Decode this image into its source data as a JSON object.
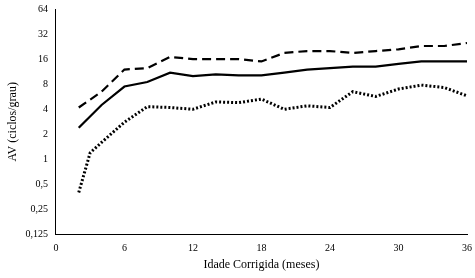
{
  "chart_data": {
    "type": "line",
    "x_label": "Idade Corrigida (meses)",
    "y_label": "AV (ciclos/grau)",
    "log": "y",
    "grid": false,
    "xlim": [
      0,
      36
    ],
    "xticks": [
      0,
      6,
      12,
      18,
      24,
      30,
      36
    ],
    "ylim": [
      0.125,
      64
    ],
    "yticks": [
      {
        "value": 0.125,
        "label": "0,125"
      },
      {
        "value": 0.25,
        "label": "0,25"
      },
      {
        "value": 0.5,
        "label": "0,5"
      },
      1,
      2,
      4,
      8,
      16,
      32,
      64
    ],
    "series": [
      {
        "color": "#000000",
        "line_style": "dashed",
        "x": [
          2,
          4,
          6,
          8,
          10,
          12,
          14,
          16,
          18,
          20,
          22,
          24,
          26,
          28,
          30,
          32,
          34,
          36
        ],
        "values": [
          4.2,
          6.5,
          12,
          12.5,
          17,
          16,
          16,
          16,
          15,
          19,
          20,
          20,
          19,
          20,
          21,
          23,
          23,
          25
        ]
      },
      {
        "color": "#000000",
        "line_style": "solid",
        "x": [
          2,
          4,
          6,
          8,
          10,
          12,
          14,
          16,
          18,
          20,
          22,
          24,
          26,
          28,
          30,
          32,
          34,
          36
        ],
        "values": [
          2.4,
          4.5,
          7.5,
          8.5,
          11,
          10,
          10.5,
          10.2,
          10.2,
          11,
          12,
          12.5,
          13,
          13,
          14,
          15,
          15,
          15
        ]
      },
      {
        "color": "#000000",
        "line_style": "dotted",
        "x": [
          2,
          3,
          4,
          6,
          8,
          10,
          12,
          14,
          16,
          18,
          20,
          22,
          24,
          26,
          28,
          30,
          32,
          34,
          36
        ],
        "values": [
          0.4,
          1.2,
          1.6,
          2.8,
          4.3,
          4.2,
          4.0,
          4.9,
          4.8,
          5.3,
          4.0,
          4.4,
          4.2,
          6.5,
          5.7,
          7.0,
          7.8,
          7.3,
          5.8
        ]
      }
    ]
  }
}
